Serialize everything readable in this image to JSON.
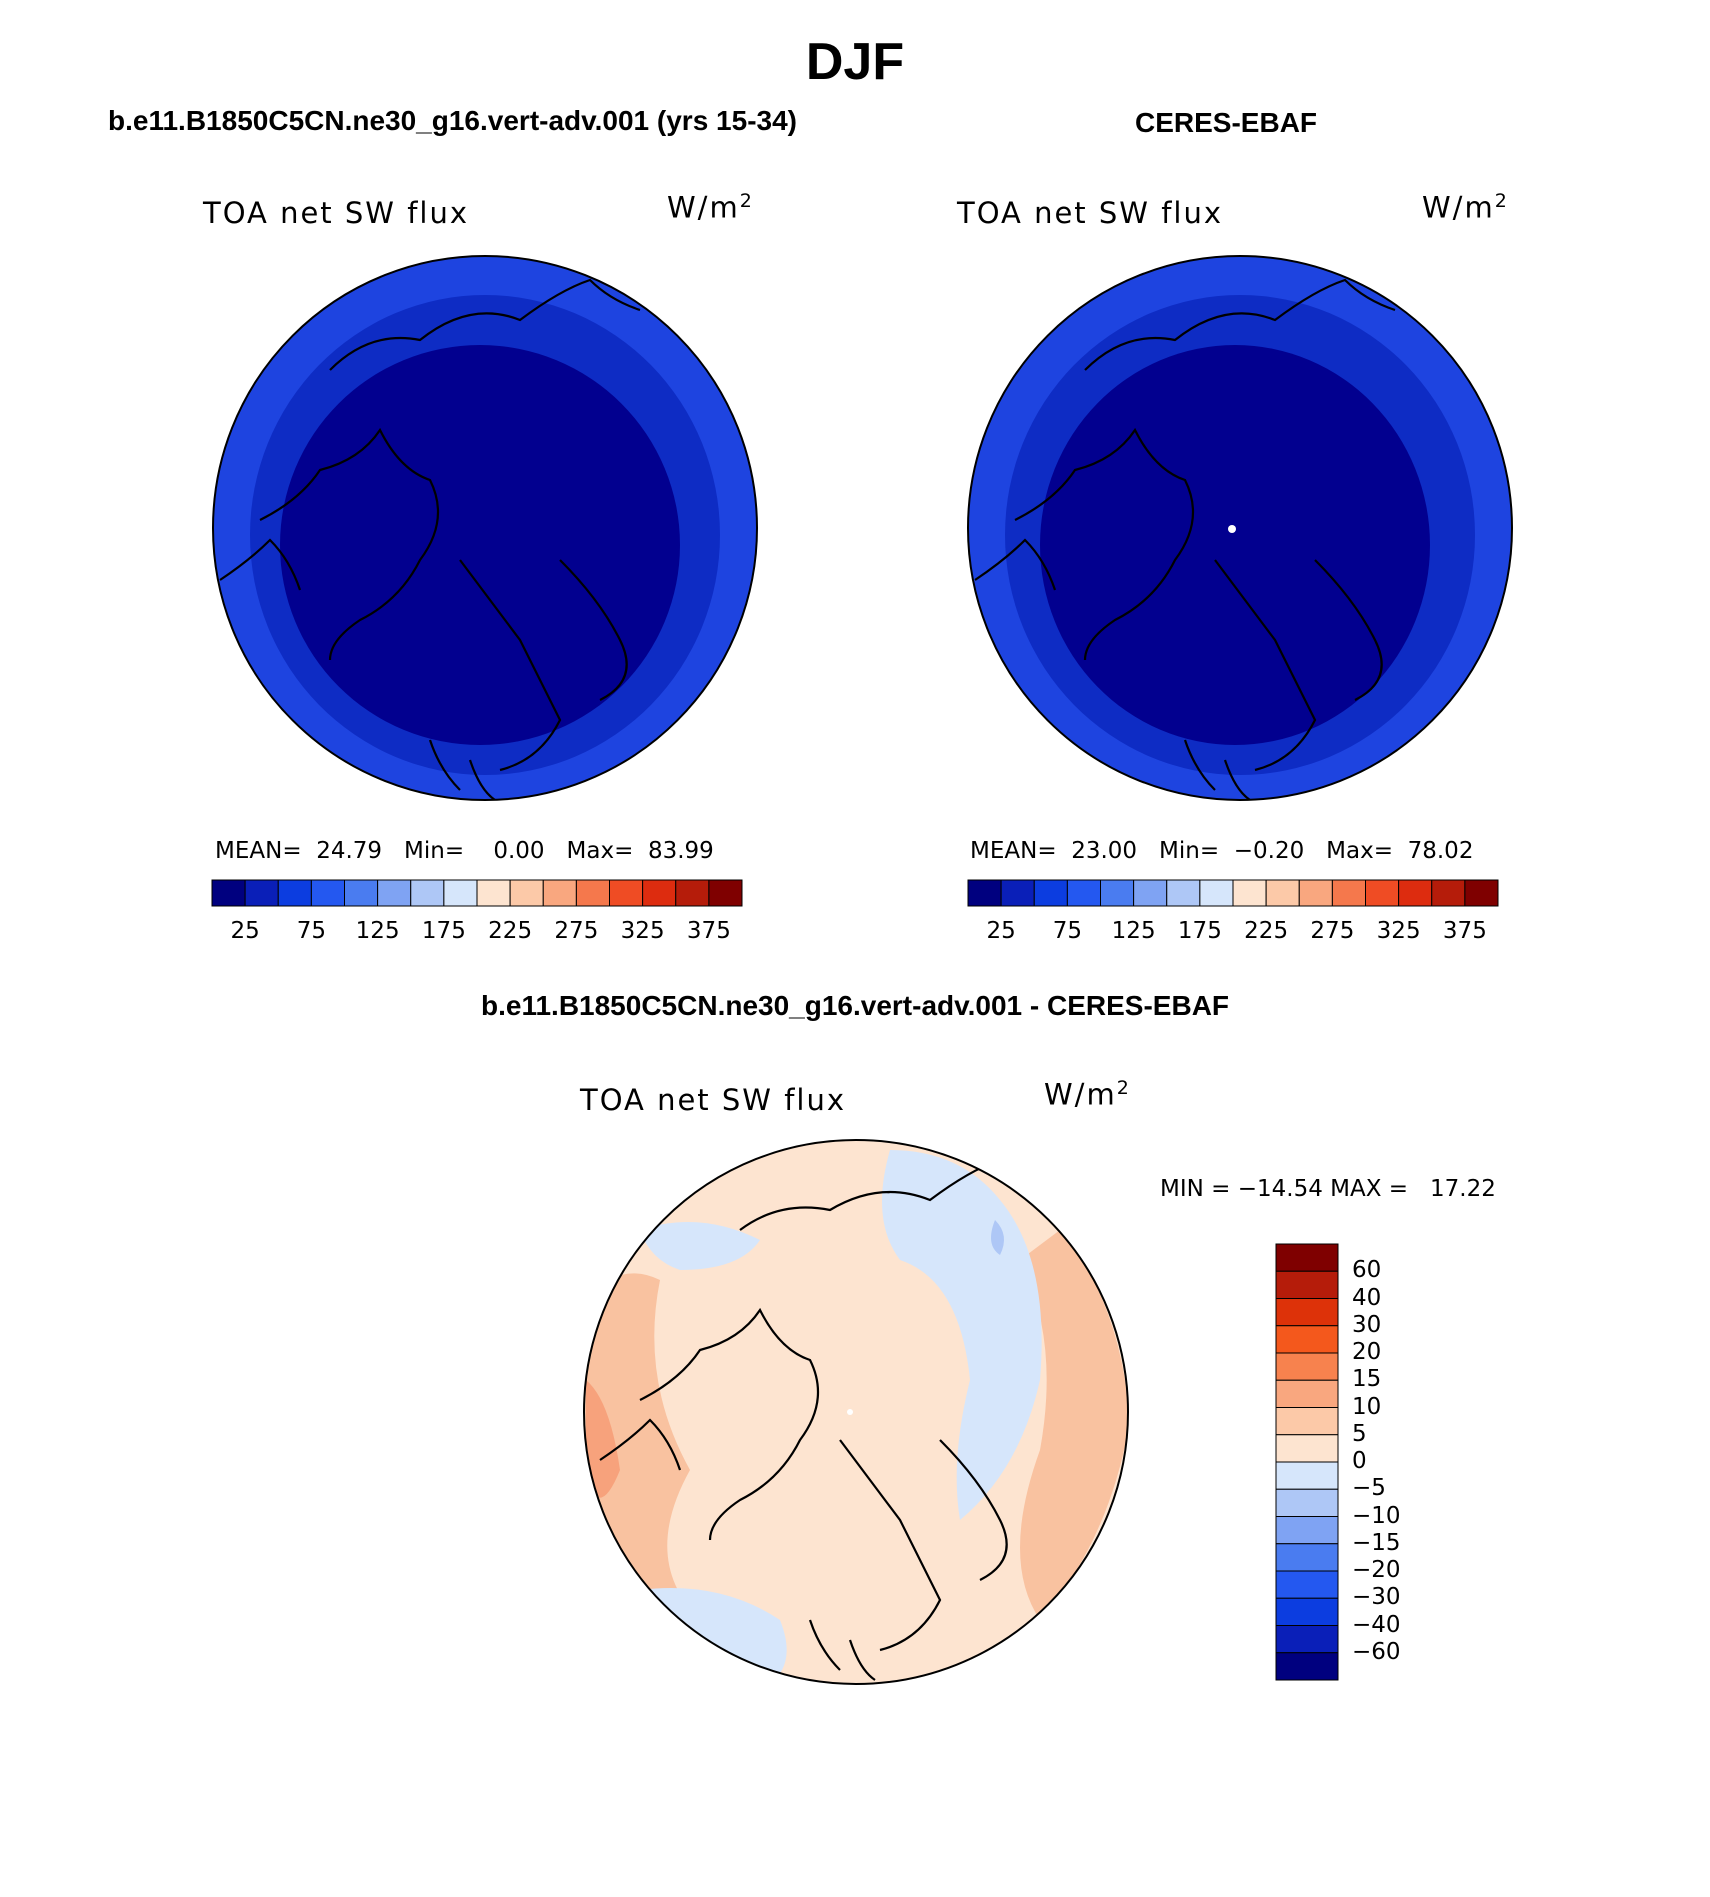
{
  "figure": {
    "title": "DJF"
  },
  "panels": [
    {
      "id": "model",
      "title": "b.e11.B1850C5CN.ne30_g16.vert-adv.001 (yrs 15-34)",
      "field_label": "TOA net SW flux",
      "units_base": "W/m",
      "units_exp": "2",
      "stats": {
        "mean_label": "MEAN=",
        "mean": "24.79",
        "min_label": "Min=",
        "min": "0.00",
        "max_label": "Max=",
        "max": "83.99"
      }
    },
    {
      "id": "obs",
      "title": "CERES-EBAF",
      "field_label": "TOA net SW flux",
      "units_base": "W/m",
      "units_exp": "2",
      "stats": {
        "mean_label": "MEAN=",
        "mean": "23.00",
        "min_label": "Min=",
        "min": "−0.20",
        "max_label": "Max=",
        "max": "78.02"
      }
    },
    {
      "id": "diff",
      "title": "b.e11.B1850C5CN.ne30_g16.vert-adv.001 - CERES-EBAF",
      "field_label": "TOA net SW flux",
      "units_base": "W/m",
      "units_exp": "2",
      "stats_text": "MIN = −14.54 MAX =   17.22"
    }
  ],
  "colorbar_abs": {
    "colors": [
      "#00007f",
      "#0a1fb8",
      "#0c3de0",
      "#2458f0",
      "#4a7cf0",
      "#7fa3f3",
      "#aec7f6",
      "#d6e6fb",
      "#fde4d0",
      "#fcc9a8",
      "#f9a77f",
      "#f5784c",
      "#ef4c24",
      "#dd2c0f",
      "#b51c0a",
      "#7f0000"
    ],
    "ticks": [
      "25",
      "75",
      "125",
      "175",
      "225",
      "275",
      "325",
      "375"
    ]
  },
  "colorbar_diff": {
    "colors_top_to_bottom": [
      "#7f0000",
      "#b51c0a",
      "#dd3209",
      "#f4581c",
      "#f7824e",
      "#f9a77f",
      "#fcc9a8",
      "#fde4d0",
      "#d6e6fb",
      "#aec7f6",
      "#7fa3f3",
      "#4a7cf0",
      "#2458f0",
      "#0c3de0",
      "#0a1fb8",
      "#00007f"
    ],
    "ticks": [
      "60",
      "40",
      "30",
      "20",
      "15",
      "10",
      "5",
      "0",
      "−5",
      "−10",
      "−15",
      "−20",
      "−30",
      "−40",
      "−60"
    ]
  },
  "map_fills": {
    "outer_ring_abs": "#1e44e0",
    "mid_ring_abs": "#0e2cc4",
    "inner_abs": "#02008f",
    "diff_base": "#fde4d0",
    "diff_warm": "#f9c2a0",
    "diff_warm2": "#f7a27c",
    "diff_cool": "#d6e6fb",
    "diff_cool2": "#aec7f6"
  }
}
